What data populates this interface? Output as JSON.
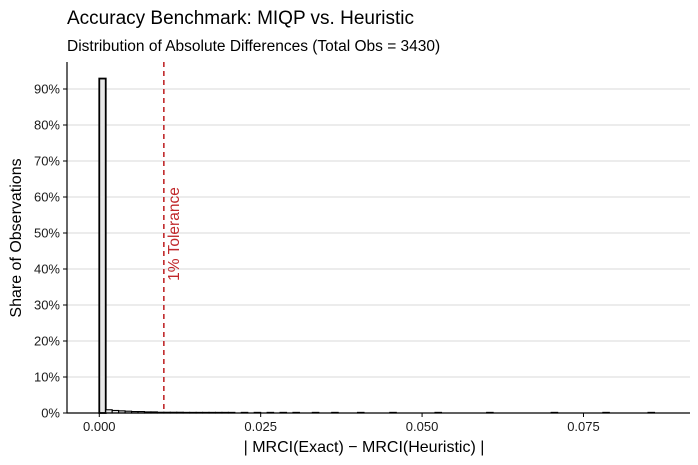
{
  "chart_data": {
    "type": "histogram",
    "title": "Accuracy Benchmark: MIQP vs. Heuristic",
    "subtitle": "Distribution of Absolute Differences (Total Obs = 3430)",
    "xlabel": "| MRCI(Exact) − MRCI(Heuristic) |",
    "ylabel": "Share of Observations",
    "xlim": [
      -0.005,
      0.0915
    ],
    "ylim": [
      0,
      0.975
    ],
    "x_ticks": [
      0.0,
      0.025,
      0.05,
      0.075
    ],
    "x_tick_labels": [
      "0.000",
      "0.025",
      "0.050",
      "0.075"
    ],
    "y_ticks": [
      0,
      0.1,
      0.2,
      0.3,
      0.4,
      0.5,
      0.6,
      0.7,
      0.8,
      0.9
    ],
    "y_tick_labels": [
      "0%",
      "10%",
      "20%",
      "30%",
      "40%",
      "50%",
      "60%",
      "70%",
      "80%",
      "90%"
    ],
    "grid": "horizontal major",
    "bin_width": 0.001,
    "bins": [
      {
        "x": 0.0,
        "share": 0.929
      },
      {
        "x": 0.001,
        "share": 0.009
      },
      {
        "x": 0.002,
        "share": 0.007
      },
      {
        "x": 0.003,
        "share": 0.006
      },
      {
        "x": 0.004,
        "share": 0.005
      },
      {
        "x": 0.005,
        "share": 0.004
      },
      {
        "x": 0.006,
        "share": 0.004
      },
      {
        "x": 0.007,
        "share": 0.003
      },
      {
        "x": 0.008,
        "share": 0.003
      },
      {
        "x": 0.009,
        "share": 0.002
      },
      {
        "x": 0.01,
        "share": 0.002
      },
      {
        "x": 0.011,
        "share": 0.002
      },
      {
        "x": 0.012,
        "share": 0.002
      },
      {
        "x": 0.013,
        "share": 0.0015
      },
      {
        "x": 0.014,
        "share": 0.0015
      },
      {
        "x": 0.015,
        "share": 0.001
      },
      {
        "x": 0.016,
        "share": 0.001
      },
      {
        "x": 0.017,
        "share": 0.001
      },
      {
        "x": 0.018,
        "share": 0.001
      },
      {
        "x": 0.019,
        "share": 0.001
      },
      {
        "x": 0.02,
        "share": 0.001
      },
      {
        "x": 0.022,
        "share": 0.0008
      },
      {
        "x": 0.024,
        "share": 0.0008
      },
      {
        "x": 0.026,
        "share": 0.0006
      },
      {
        "x": 0.028,
        "share": 0.0006
      },
      {
        "x": 0.03,
        "share": 0.0006
      },
      {
        "x": 0.033,
        "share": 0.0005
      },
      {
        "x": 0.036,
        "share": 0.0005
      },
      {
        "x": 0.04,
        "share": 0.0003
      },
      {
        "x": 0.045,
        "share": 0.0003
      },
      {
        "x": 0.052,
        "share": 0.0003
      },
      {
        "x": 0.06,
        "share": 0.0003
      },
      {
        "x": 0.07,
        "share": 0.0003
      },
      {
        "x": 0.078,
        "share": 0.0003
      },
      {
        "x": 0.085,
        "share": 0.0003
      }
    ],
    "reference_line": {
      "x": 0.01,
      "label": "1% Tolerance",
      "color": "#c0282b",
      "style": "dashed"
    },
    "colors": {
      "bar_fill": "#e8e8e8",
      "bar_stroke": "#000000",
      "grid": "#e5e5e5",
      "axis": "#000000",
      "background": "#ffffff"
    }
  }
}
